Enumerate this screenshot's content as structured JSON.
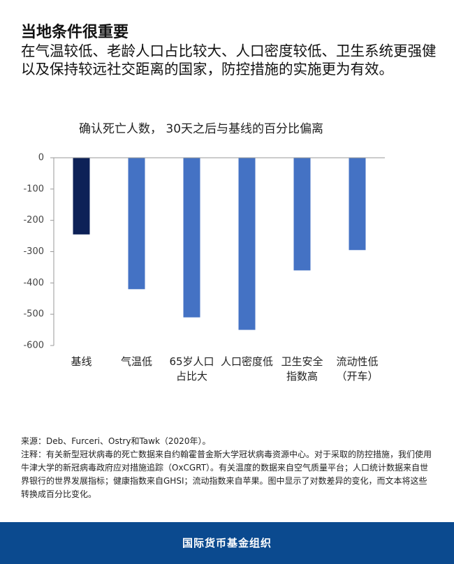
{
  "header": {
    "title": "当地条件很重要",
    "subtitle": "在气温较低、老龄人口占比较大、人口密度较低、卫生系统更强健以及保持较远社交距离的国家，防控措施的实施更为有效。"
  },
  "chart_data": {
    "type": "bar",
    "title": "确认死亡人数， 30天之后与基线的百分比偏离",
    "categories": [
      "基线",
      "气温低",
      "65岁人口\n占比大",
      "人口密度低",
      "卫生安全\n指数高",
      "流动性低\n（开车）"
    ],
    "values": [
      -245,
      -420,
      -510,
      -550,
      -360,
      -295
    ],
    "colors": [
      "#0d2157",
      "#4472c4",
      "#4472c4",
      "#4472c4",
      "#4472c4",
      "#4472c4"
    ],
    "ylim": [
      -600,
      0
    ],
    "yticks": [
      0,
      -100,
      -200,
      -300,
      -400,
      -500,
      -600
    ],
    "grid": false
  },
  "notes": {
    "source": "来源：Deb、Furceri、Ostry和Tawk（2020年）。",
    "note": "注释：有关新型冠状病毒的死亡数据来自约翰霍普金斯大学冠状病毒资源中心。对于采取的防控措施，我们使用牛津大学的新冠病毒政府应对措施追踪（OxCGRT）。有关温度的数据来自空气质量平台；人口统计数据来自世界银行的世界发展指标；健康指数来自GHSI；流动指数来自苹果。图中显示了对数差异的变化，而文本将这些转换成百分比变化。"
  },
  "footer": {
    "org": "国际货币基金组织"
  }
}
